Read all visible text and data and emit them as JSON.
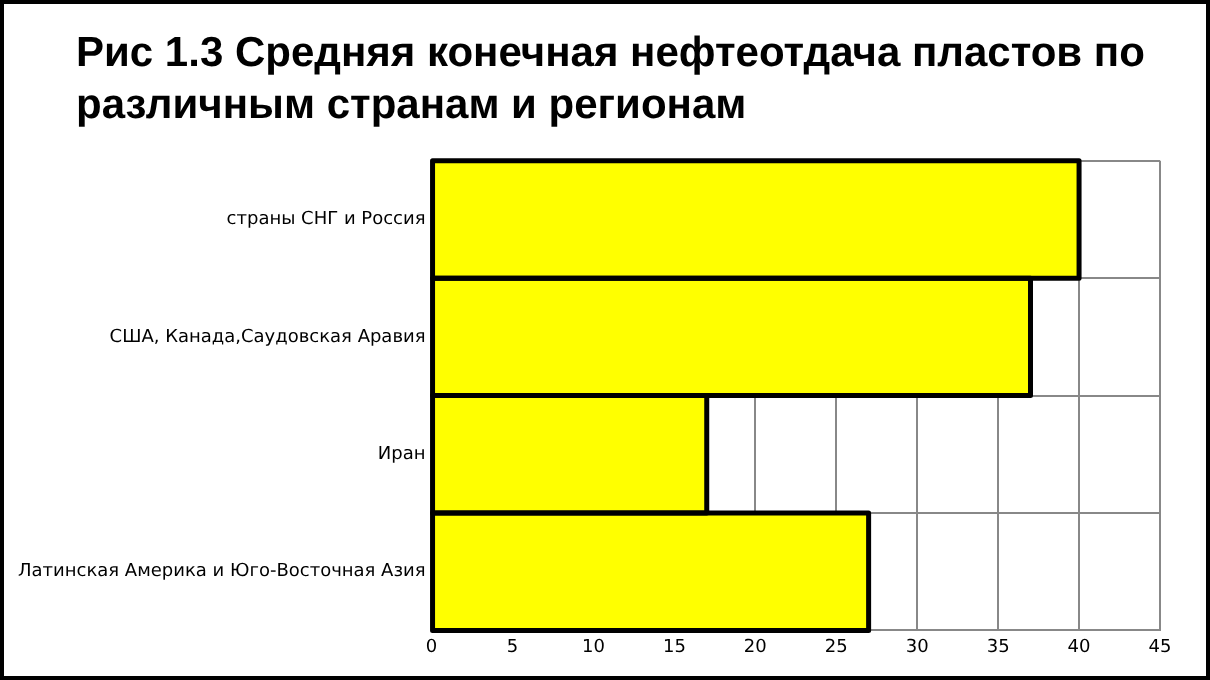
{
  "chart_data": {
    "type": "bar",
    "orientation": "horizontal",
    "title": "Рис 1.3 Средняя конечная нефтеотдача пластов по различным странам и регионам",
    "categories": [
      "страны СНГ и Россия",
      "США, Канада,Саудовская Аравия",
      "Иран",
      "Латинская Америка и Юго-Восточная Азия"
    ],
    "values": [
      40,
      37,
      17,
      27
    ],
    "color": "#ffff00",
    "xlim": [
      0,
      45
    ],
    "xticks": [
      0,
      5,
      10,
      15,
      20,
      25,
      30,
      35,
      40,
      45
    ],
    "grid": true,
    "legend": false
  }
}
